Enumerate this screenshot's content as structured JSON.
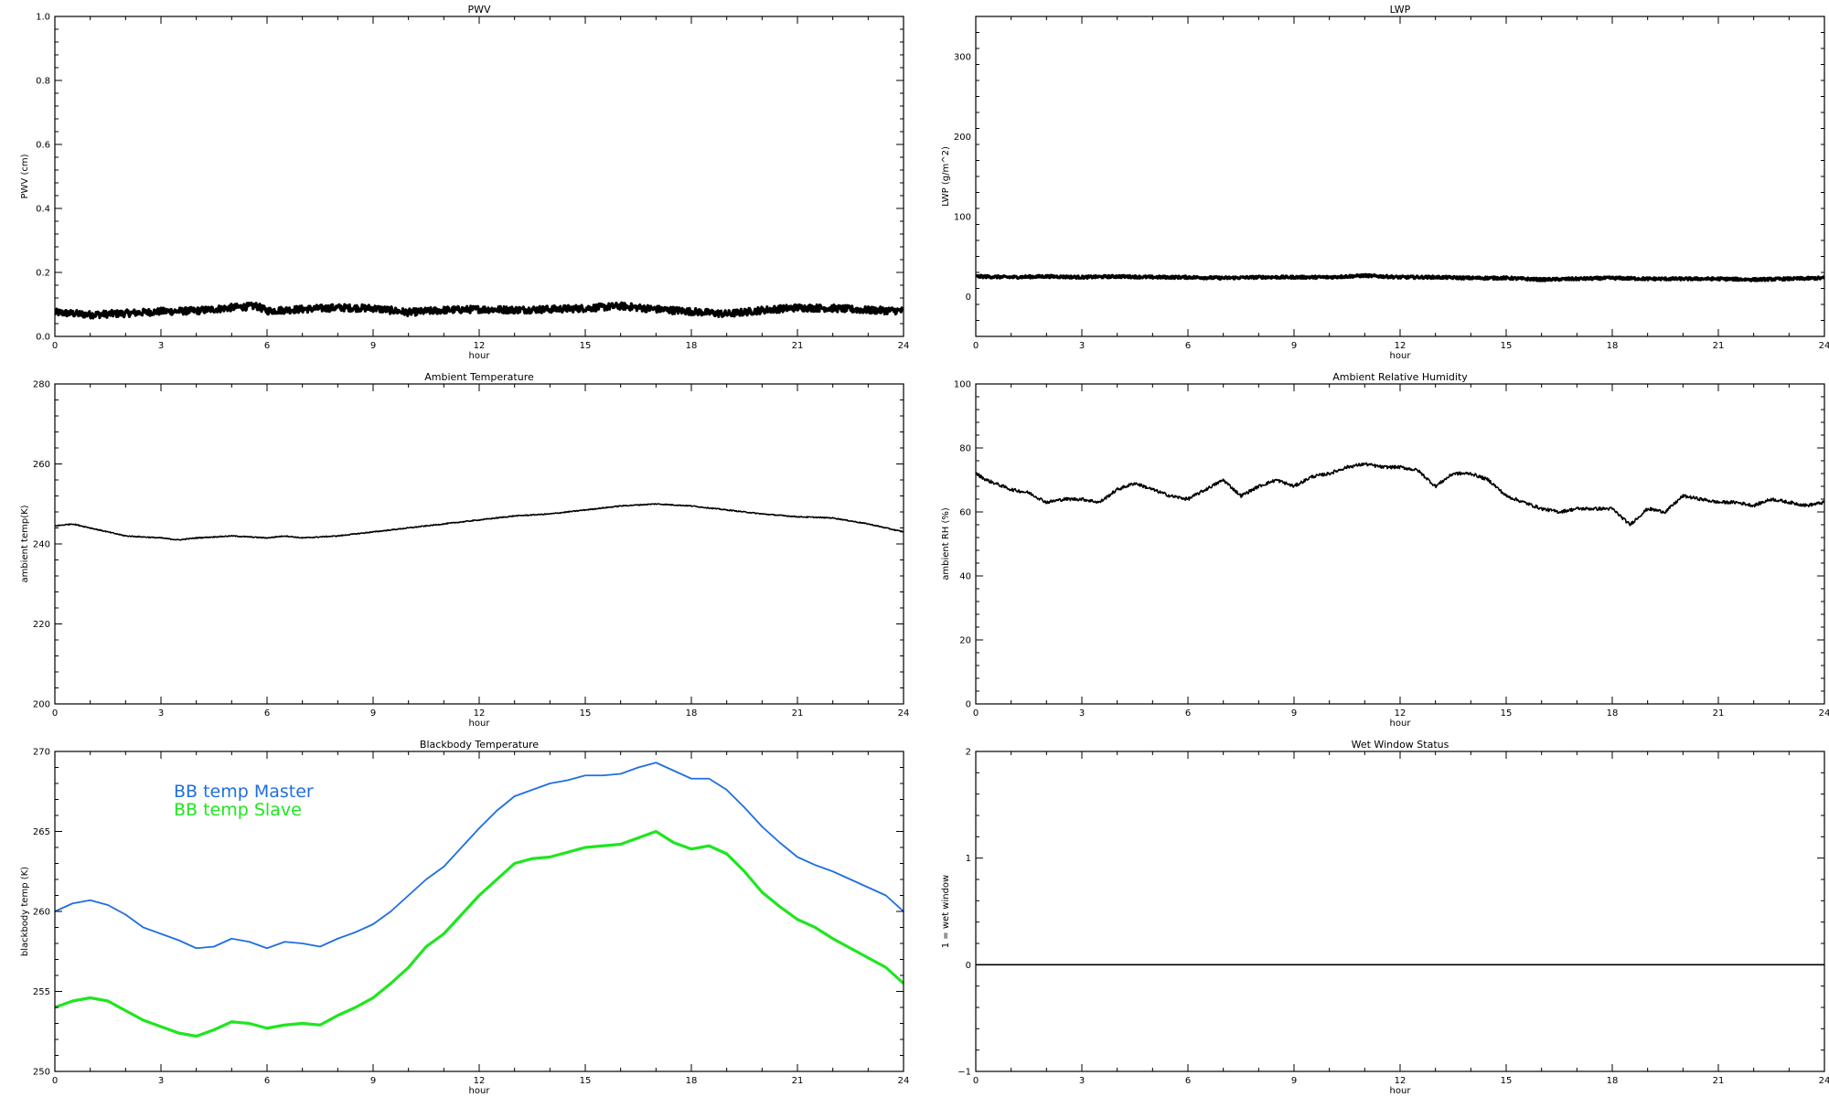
{
  "figure": {
    "background": "#ffffff",
    "axis_color": "#000000"
  },
  "chart_data": [
    {
      "id": "pwv",
      "type": "line",
      "title": "PWV",
      "xlabel": "hour",
      "ylabel": "PWV (cm)",
      "xlim": [
        0,
        24
      ],
      "ylim": [
        0,
        1.0
      ],
      "xticks": [
        0,
        3,
        6,
        9,
        12,
        15,
        18,
        21,
        24
      ],
      "yticks": [
        0.0,
        0.2,
        0.4,
        0.6,
        0.8,
        1.0
      ],
      "ytick_labels": [
        "0.0",
        "0.2",
        "0.4",
        "0.6",
        "0.8",
        "1.0"
      ],
      "legend": "none",
      "grid": false,
      "series": [
        {
          "color": "#000000",
          "width": 3.2,
          "noise": 0.011,
          "x": [
            0,
            1,
            2,
            3,
            4,
            5,
            5.7,
            6,
            7,
            8,
            9,
            10,
            11,
            12,
            13,
            14,
            15,
            16,
            17,
            18,
            19,
            20,
            21,
            22,
            23,
            24
          ],
          "y": [
            0.075,
            0.068,
            0.072,
            0.078,
            0.08,
            0.09,
            0.095,
            0.08,
            0.085,
            0.09,
            0.088,
            0.075,
            0.082,
            0.085,
            0.083,
            0.085,
            0.088,
            0.095,
            0.085,
            0.078,
            0.07,
            0.082,
            0.09,
            0.088,
            0.082,
            0.08
          ]
        }
      ]
    },
    {
      "id": "lwp",
      "type": "line",
      "title": "LWP",
      "xlabel": "hour",
      "ylabel": "LWP (g/m^2)",
      "xlim": [
        0,
        24
      ],
      "ylim": [
        -50,
        350
      ],
      "xticks": [
        0,
        3,
        6,
        9,
        12,
        15,
        18,
        21,
        24
      ],
      "yticks": [
        0,
        100,
        200,
        300
      ],
      "ytick_labels": [
        "0",
        "100",
        "200",
        "300"
      ],
      "legend": "none",
      "grid": false,
      "series": [
        {
          "color": "#000000",
          "width": 3.2,
          "noise": 1.6,
          "x": [
            0,
            1,
            2,
            3,
            4,
            5,
            6,
            7,
            8,
            9,
            10,
            11,
            12,
            13,
            14,
            15,
            16,
            17,
            18,
            19,
            20,
            21,
            22,
            23,
            24
          ],
          "y": [
            25,
            24,
            25,
            24,
            25,
            24,
            24,
            23,
            24,
            24,
            24,
            26,
            24,
            24,
            23,
            23,
            21,
            22,
            23,
            22,
            22,
            22,
            21,
            22,
            23
          ]
        }
      ]
    },
    {
      "id": "ambient-temp",
      "type": "line",
      "title": "Ambient Temperature",
      "xlabel": "hour",
      "ylabel": "ambient temp(K)",
      "xlim": [
        0,
        24
      ],
      "ylim": [
        200,
        280
      ],
      "xticks": [
        0,
        3,
        6,
        9,
        12,
        15,
        18,
        21,
        24
      ],
      "yticks": [
        200,
        220,
        240,
        260,
        280
      ],
      "ytick_labels": [
        "200",
        "220",
        "240",
        "260",
        "280"
      ],
      "legend": "none",
      "grid": false,
      "series": [
        {
          "color": "#000000",
          "width": 1.6,
          "noise": 0.12,
          "x": [
            0,
            0.5,
            1,
            2,
            3,
            3.5,
            4,
            5,
            6,
            6.5,
            7,
            8,
            9,
            10,
            11,
            12,
            13,
            14,
            15,
            16,
            17,
            18,
            19,
            20,
            21,
            22,
            23,
            24
          ],
          "y": [
            244.5,
            245,
            244,
            242,
            241.5,
            241,
            241.5,
            242,
            241.5,
            242,
            241.5,
            242,
            243,
            244,
            245,
            246,
            247,
            247.5,
            248.5,
            249.5,
            250,
            249.5,
            248.5,
            247.5,
            246.8,
            246.5,
            245,
            243
          ]
        }
      ]
    },
    {
      "id": "ambient-rh",
      "type": "line",
      "title": "Ambient Relative Humidity",
      "xlabel": "hour",
      "ylabel": "ambient RH (%)",
      "xlim": [
        0,
        24
      ],
      "ylim": [
        0,
        100
      ],
      "xticks": [
        0,
        3,
        6,
        9,
        12,
        15,
        18,
        21,
        24
      ],
      "yticks": [
        0,
        20,
        40,
        60,
        80,
        100
      ],
      "ytick_labels": [
        "0",
        "20",
        "40",
        "60",
        "80",
        "100"
      ],
      "legend": "none",
      "grid": false,
      "series": [
        {
          "color": "#000000",
          "width": 1.6,
          "noise": 0.5,
          "x": [
            0,
            0.3,
            1,
            1.5,
            2,
            2.5,
            3,
            3.5,
            4,
            4.5,
            5,
            5.5,
            6,
            6.5,
            7,
            7.5,
            8,
            8.5,
            9,
            9.5,
            10,
            10.5,
            11,
            11.5,
            12,
            12.5,
            13,
            13.5,
            14,
            14.5,
            15,
            15.5,
            16,
            16.5,
            17,
            17.5,
            18,
            18.5,
            19,
            19.5,
            20,
            20.5,
            21,
            21.5,
            22,
            22.5,
            23,
            23.5,
            24
          ],
          "y": [
            72,
            70,
            67,
            66,
            63,
            64,
            64,
            63,
            67,
            69,
            67,
            65,
            64,
            67,
            70,
            65,
            68,
            70,
            68,
            71,
            72,
            74,
            75,
            74,
            74,
            73,
            68,
            72,
            72,
            70,
            65,
            63,
            61,
            60,
            61,
            61,
            61,
            56,
            61,
            60,
            65,
            64,
            63,
            63,
            62,
            64,
            63,
            62,
            63
          ]
        }
      ]
    },
    {
      "id": "blackbody-temp",
      "type": "line",
      "title": "Blackbody Temperature",
      "xlabel": "hour",
      "ylabel": "blackbody temp (K)",
      "xlim": [
        0,
        24
      ],
      "ylim": [
        250,
        270
      ],
      "xticks": [
        0,
        3,
        6,
        9,
        12,
        15,
        18,
        21,
        24
      ],
      "yticks": [
        250,
        255,
        260,
        265,
        270
      ],
      "ytick_labels": [
        "250",
        "255",
        "260",
        "265",
        "270"
      ],
      "legend": "top-left",
      "grid": false,
      "series": [
        {
          "name": "BB temp Master",
          "color": "#1f6fe0",
          "width": 1.8,
          "noise": 0,
          "x": [
            0,
            0.5,
            1,
            1.5,
            2,
            2.5,
            3,
            3.5,
            4,
            4.5,
            5,
            5.5,
            6,
            6.5,
            7,
            7.5,
            8,
            8.5,
            9,
            9.5,
            10,
            10.5,
            11,
            11.5,
            12,
            12.5,
            13,
            13.5,
            14,
            14.5,
            15,
            15.5,
            16,
            16.5,
            17,
            17.5,
            18,
            18.5,
            19,
            19.5,
            20,
            20.5,
            21,
            21.5,
            22,
            22.5,
            23,
            23.5,
            24
          ],
          "y": [
            260.0,
            260.5,
            260.7,
            260.4,
            259.8,
            259.0,
            258.6,
            258.2,
            257.7,
            257.8,
            258.3,
            258.1,
            257.7,
            258.1,
            258.0,
            257.8,
            258.3,
            258.7,
            259.2,
            260.0,
            261.0,
            262.0,
            262.8,
            264.0,
            265.2,
            266.3,
            267.2,
            267.6,
            268.0,
            268.2,
            268.5,
            268.5,
            268.6,
            269.0,
            269.3,
            268.8,
            268.3,
            268.3,
            267.6,
            266.5,
            265.3,
            264.3,
            263.4,
            262.9,
            262.5,
            262.0,
            261.5,
            261.0,
            260.0
          ]
        },
        {
          "name": "BB temp Slave",
          "color": "#1ee61e",
          "width": 3.2,
          "noise": 0,
          "x": [
            0,
            0.5,
            1,
            1.5,
            2,
            2.5,
            3,
            3.5,
            4,
            4.5,
            5,
            5.5,
            6,
            6.5,
            7,
            7.5,
            8,
            8.5,
            9,
            9.5,
            10,
            10.5,
            11,
            11.5,
            12,
            12.5,
            13,
            13.5,
            14,
            14.5,
            15,
            15.5,
            16,
            16.5,
            17,
            17.5,
            18,
            18.5,
            19,
            19.5,
            20,
            20.5,
            21,
            21.5,
            22,
            22.5,
            23,
            23.5,
            24
          ],
          "y": [
            254.0,
            254.4,
            254.6,
            254.4,
            253.8,
            253.2,
            252.8,
            252.4,
            252.2,
            252.6,
            253.1,
            253.0,
            252.7,
            252.9,
            253.0,
            252.9,
            253.5,
            254.0,
            254.6,
            255.5,
            256.5,
            257.8,
            258.6,
            259.8,
            261.0,
            262.0,
            263.0,
            263.3,
            263.4,
            263.7,
            264.0,
            264.1,
            264.2,
            264.6,
            265.0,
            264.3,
            263.9,
            264.1,
            263.6,
            262.5,
            261.2,
            260.3,
            259.5,
            259.0,
            258.3,
            257.7,
            257.1,
            256.5,
            255.5
          ]
        }
      ]
    },
    {
      "id": "wet-window",
      "type": "line",
      "title": "Wet Window Status",
      "xlabel": "hour",
      "ylabel": "1 = wet window",
      "xlim": [
        0,
        24
      ],
      "ylim": [
        -1,
        2
      ],
      "xticks": [
        0,
        3,
        6,
        9,
        12,
        15,
        18,
        21,
        24
      ],
      "yticks": [
        -1,
        0,
        1,
        2
      ],
      "ytick_labels": [
        "−1",
        "0",
        "1",
        "2"
      ],
      "legend": "none",
      "grid": false,
      "series": [
        {
          "color": "#000000",
          "width": 1.6,
          "noise": 0,
          "x": [
            0,
            24
          ],
          "y": [
            0,
            0
          ]
        }
      ]
    }
  ]
}
